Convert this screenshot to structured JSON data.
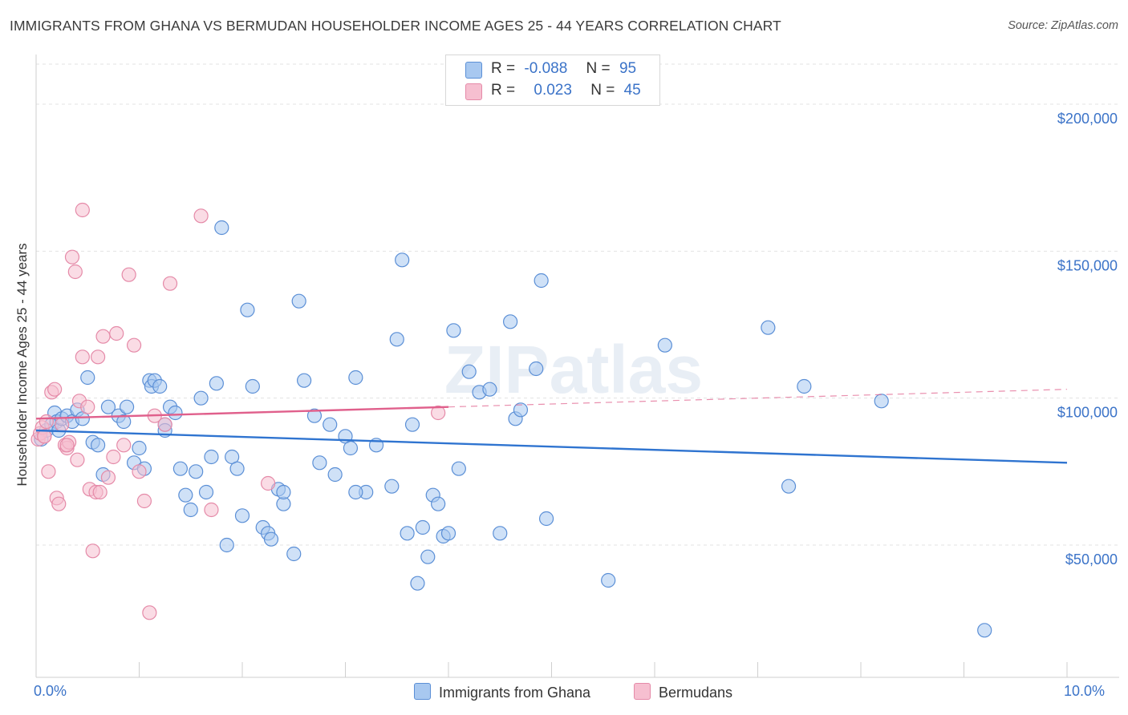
{
  "title": "IMMIGRANTS FROM GHANA VS BERMUDAN HOUSEHOLDER INCOME AGES 25 - 44 YEARS CORRELATION CHART",
  "source": "Source: ZipAtlas.com",
  "watermark": "ZIPatlas",
  "legend": {
    "rows": [
      {
        "r_label": "R =",
        "r_value": "-0.088",
        "n_label": "N =",
        "n_value": "95"
      },
      {
        "r_label": "R =",
        "r_value": "0.023",
        "n_label": "N =",
        "n_value": "45"
      }
    ]
  },
  "bottom_legend": [
    "Immigrants from Ghana",
    "Bermudans"
  ],
  "colors": {
    "blue_fill": "#a8c8f0",
    "blue_stroke": "#5b8fd6",
    "blue_line": "#2f74d0",
    "pink_fill": "#f6bfd0",
    "pink_stroke": "#e58aa8",
    "pink_line": "#e0608c",
    "grid": "#e3e3e3",
    "axis_text": "#3b73c8"
  },
  "chart_data": {
    "type": "scatter",
    "title": "IMMIGRANTS FROM GHANA VS BERMUDAN HOUSEHOLDER INCOME AGES 25 - 44 YEARS CORRELATION CHART",
    "xlabel": "",
    "ylabel": "Householder Income Ages 25 - 44 years",
    "xlim": [
      0,
      10
    ],
    "ylim": [
      5000,
      215000
    ],
    "x_tick_labels": [
      "0.0%",
      "10.0%"
    ],
    "y_ticks": [
      50000,
      100000,
      150000,
      200000
    ],
    "y_tick_labels": [
      "$50,000",
      "$100,000",
      "$150,000",
      "$200,000"
    ],
    "grid": true,
    "series": [
      {
        "name": "Immigrants from Ghana",
        "R": -0.088,
        "N": 95,
        "trend": {
          "x": [
            0,
            10
          ],
          "y": [
            89000,
            78000
          ],
          "style": "solid"
        },
        "points": [
          [
            0.05,
            86000
          ],
          [
            0.1,
            89000
          ],
          [
            0.15,
            91000
          ],
          [
            0.18,
            95000
          ],
          [
            0.2,
            92000
          ],
          [
            0.22,
            89000
          ],
          [
            0.25,
            93000
          ],
          [
            0.3,
            94000
          ],
          [
            0.35,
            92000
          ],
          [
            0.4,
            96000
          ],
          [
            0.45,
            93000
          ],
          [
            0.55,
            85000
          ],
          [
            0.6,
            84000
          ],
          [
            0.65,
            74000
          ],
          [
            0.7,
            97000
          ],
          [
            0.8,
            94000
          ],
          [
            0.85,
            92000
          ],
          [
            0.88,
            97000
          ],
          [
            0.95,
            78000
          ],
          [
            1.0,
            83000
          ],
          [
            1.05,
            76000
          ],
          [
            1.1,
            106000
          ],
          [
            1.12,
            104000
          ],
          [
            1.15,
            106000
          ],
          [
            1.2,
            104000
          ],
          [
            1.25,
            91000
          ],
          [
            1.3,
            97000
          ],
          [
            1.35,
            95000
          ],
          [
            1.4,
            76000
          ],
          [
            1.45,
            67000
          ],
          [
            1.5,
            62000
          ],
          [
            1.55,
            75000
          ],
          [
            1.6,
            100000
          ],
          [
            1.65,
            68000
          ],
          [
            1.7,
            80000
          ],
          [
            1.75,
            105000
          ],
          [
            1.8,
            158000
          ],
          [
            1.85,
            50000
          ],
          [
            1.9,
            80000
          ],
          [
            1.95,
            76000
          ],
          [
            2.0,
            60000
          ],
          [
            2.05,
            130000
          ],
          [
            2.1,
            104000
          ],
          [
            2.2,
            56000
          ],
          [
            2.25,
            54000
          ],
          [
            2.28,
            52000
          ],
          [
            2.35,
            69000
          ],
          [
            2.4,
            64000
          ],
          [
            2.5,
            47000
          ],
          [
            2.55,
            133000
          ],
          [
            2.6,
            106000
          ],
          [
            2.7,
            94000
          ],
          [
            2.75,
            78000
          ],
          [
            2.85,
            91000
          ],
          [
            2.9,
            74000
          ],
          [
            3.0,
            87000
          ],
          [
            3.05,
            83000
          ],
          [
            3.1,
            107000
          ],
          [
            3.2,
            68000
          ],
          [
            3.3,
            84000
          ],
          [
            3.45,
            70000
          ],
          [
            3.5,
            120000
          ],
          [
            3.55,
            147000
          ],
          [
            3.6,
            54000
          ],
          [
            3.65,
            91000
          ],
          [
            3.7,
            37000
          ],
          [
            3.75,
            56000
          ],
          [
            3.8,
            46000
          ],
          [
            3.85,
            67000
          ],
          [
            3.9,
            64000
          ],
          [
            3.95,
            53000
          ],
          [
            4.0,
            54000
          ],
          [
            4.05,
            123000
          ],
          [
            4.1,
            76000
          ],
          [
            4.2,
            109000
          ],
          [
            4.3,
            102000
          ],
          [
            4.4,
            103000
          ],
          [
            4.5,
            54000
          ],
          [
            4.6,
            126000
          ],
          [
            4.65,
            93000
          ],
          [
            4.7,
            96000
          ],
          [
            4.85,
            110000
          ],
          [
            4.9,
            140000
          ],
          [
            4.95,
            59000
          ],
          [
            5.55,
            38000
          ],
          [
            6.1,
            118000
          ],
          [
            7.1,
            124000
          ],
          [
            7.3,
            70000
          ],
          [
            7.45,
            104000
          ],
          [
            8.2,
            99000
          ],
          [
            9.2,
            21000
          ],
          [
            1.25,
            89000
          ],
          [
            0.5,
            107000
          ],
          [
            2.4,
            68000
          ],
          [
            3.1,
            68000
          ]
        ]
      },
      {
        "name": "Bermudans",
        "R": 0.023,
        "N": 45,
        "trend": {
          "x": [
            0,
            4
          ],
          "y": [
            93000,
            97000
          ],
          "style": "solid",
          "extended_to": [
            10,
            103000
          ],
          "extended_style": "dashed"
        },
        "points": [
          [
            0.02,
            86000
          ],
          [
            0.04,
            88000
          ],
          [
            0.06,
            90000
          ],
          [
            0.08,
            87000
          ],
          [
            0.1,
            92000
          ],
          [
            0.12,
            75000
          ],
          [
            0.15,
            102000
          ],
          [
            0.18,
            103000
          ],
          [
            0.2,
            66000
          ],
          [
            0.22,
            64000
          ],
          [
            0.25,
            91000
          ],
          [
            0.28,
            84000
          ],
          [
            0.3,
            83000
          ],
          [
            0.32,
            85000
          ],
          [
            0.35,
            148000
          ],
          [
            0.38,
            143000
          ],
          [
            0.4,
            79000
          ],
          [
            0.42,
            99000
          ],
          [
            0.45,
            114000
          ],
          [
            0.45,
            164000
          ],
          [
            0.5,
            97000
          ],
          [
            0.52,
            69000
          ],
          [
            0.55,
            48000
          ],
          [
            0.58,
            68000
          ],
          [
            0.6,
            114000
          ],
          [
            0.62,
            68000
          ],
          [
            0.65,
            121000
          ],
          [
            0.7,
            73000
          ],
          [
            0.75,
            80000
          ],
          [
            0.78,
            122000
          ],
          [
            0.85,
            84000
          ],
          [
            0.9,
            142000
          ],
          [
            0.95,
            118000
          ],
          [
            1.0,
            75000
          ],
          [
            1.05,
            65000
          ],
          [
            1.1,
            27000
          ],
          [
            1.15,
            94000
          ],
          [
            1.25,
            91000
          ],
          [
            1.3,
            139000
          ],
          [
            1.6,
            162000
          ],
          [
            1.7,
            62000
          ],
          [
            2.25,
            71000
          ],
          [
            3.9,
            95000
          ],
          [
            0.08,
            87000
          ],
          [
            0.3,
            84000
          ]
        ]
      }
    ]
  }
}
